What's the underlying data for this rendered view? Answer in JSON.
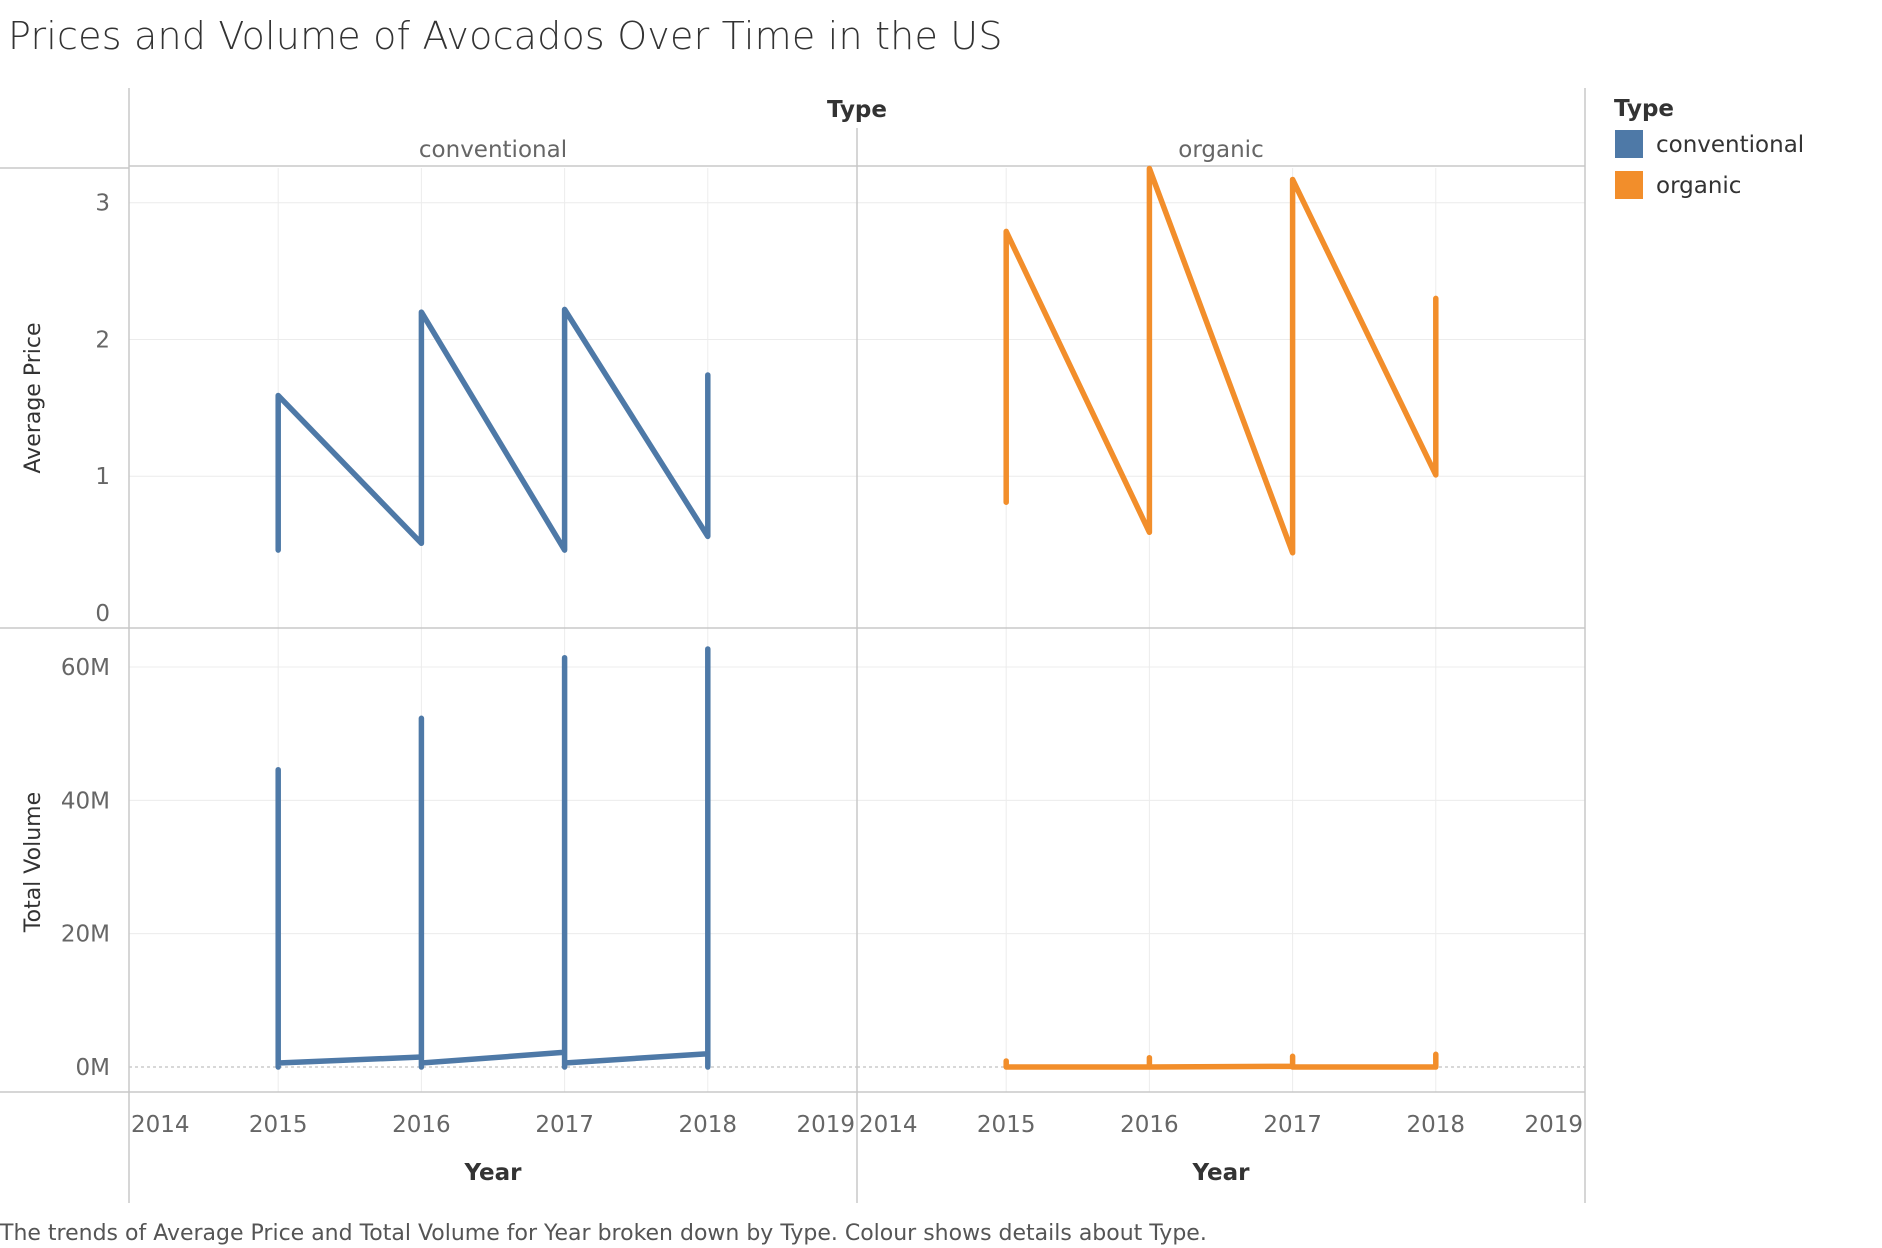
{
  "title": "Prices and Volume of Avocados Over Time in the US",
  "footer": "The trends of Average Price and Total Volume for Year broken down by Type.  Colour shows details about Type.",
  "header": {
    "column_field": "Type"
  },
  "legend": {
    "title": "Type",
    "placement": "top-right",
    "items": [
      {
        "label": "conventional",
        "color": "#4e79a7"
      },
      {
        "label": "organic",
        "color": "#f28e2b"
      }
    ]
  },
  "colors": {
    "conventional": "#4e79a7",
    "organic": "#f28e2b",
    "grid": "#ececec",
    "border": "#c8c8c8"
  },
  "chart_data": {
    "type": "line",
    "facet_field": "Type",
    "facets": [
      "conventional",
      "organic"
    ],
    "xlabel": "Year",
    "x_ticks": [
      "2014",
      "2015",
      "2016",
      "2017",
      "2018",
      "2019"
    ],
    "xlim": [
      2014,
      2019
    ],
    "price_axis": {
      "label": "Average Price",
      "ylim": [
        0,
        3.4
      ],
      "ticks": [
        0,
        1,
        2,
        3
      ],
      "tick_labels": [
        "0",
        "1",
        "2",
        "3"
      ]
    },
    "volume_axis": {
      "label": "Total Volume",
      "ylim": [
        0,
        62000000
      ],
      "ticks": [
        0,
        20000000,
        40000000,
        60000000
      ],
      "tick_labels": [
        "0M",
        "20M",
        "40M",
        "60M"
      ]
    },
    "series": [
      {
        "name": "conventional",
        "average_price": [
          {
            "x": 2015,
            "y": 0.46
          },
          {
            "x": 2015,
            "y": 1.59
          },
          {
            "x": 2016,
            "y": 0.51
          },
          {
            "x": 2016,
            "y": 2.2
          },
          {
            "x": 2017,
            "y": 0.46
          },
          {
            "x": 2017,
            "y": 2.22
          },
          {
            "x": 2018,
            "y": 0.56
          },
          {
            "x": 2018,
            "y": 1.74
          }
        ],
        "total_volume": [
          {
            "x": 2015,
            "y": 44600000
          },
          {
            "x": 2015,
            "y": 0
          },
          {
            "x": 2015,
            "y": 600000
          },
          {
            "x": 2016,
            "y": 1500000
          },
          {
            "x": 2016,
            "y": 52300000
          },
          {
            "x": 2016,
            "y": 0
          },
          {
            "x": 2016,
            "y": 600000
          },
          {
            "x": 2017,
            "y": 2200000
          },
          {
            "x": 2017,
            "y": 61400000
          },
          {
            "x": 2017,
            "y": 0
          },
          {
            "x": 2017,
            "y": 600000
          },
          {
            "x": 2018,
            "y": 2000000
          },
          {
            "x": 2018,
            "y": 62700000
          },
          {
            "x": 2018,
            "y": 0
          }
        ]
      },
      {
        "name": "organic",
        "average_price": [
          {
            "x": 2015,
            "y": 0.81
          },
          {
            "x": 2015,
            "y": 2.79
          },
          {
            "x": 2016,
            "y": 0.59
          },
          {
            "x": 2016,
            "y": 3.25
          },
          {
            "x": 2017,
            "y": 0.44
          },
          {
            "x": 2017,
            "y": 3.17
          },
          {
            "x": 2018,
            "y": 1.01
          },
          {
            "x": 2018,
            "y": 2.3
          }
        ],
        "total_volume": [
          {
            "x": 2015,
            "y": 900000
          },
          {
            "x": 2015,
            "y": 0
          },
          {
            "x": 2016,
            "y": 0
          },
          {
            "x": 2016,
            "y": 1400000
          },
          {
            "x": 2016,
            "y": 0
          },
          {
            "x": 2017,
            "y": 100000
          },
          {
            "x": 2017,
            "y": 1600000
          },
          {
            "x": 2017,
            "y": 0
          },
          {
            "x": 2018,
            "y": 0
          },
          {
            "x": 2018,
            "y": 1900000
          },
          {
            "x": 2018,
            "y": 0
          }
        ]
      }
    ]
  }
}
